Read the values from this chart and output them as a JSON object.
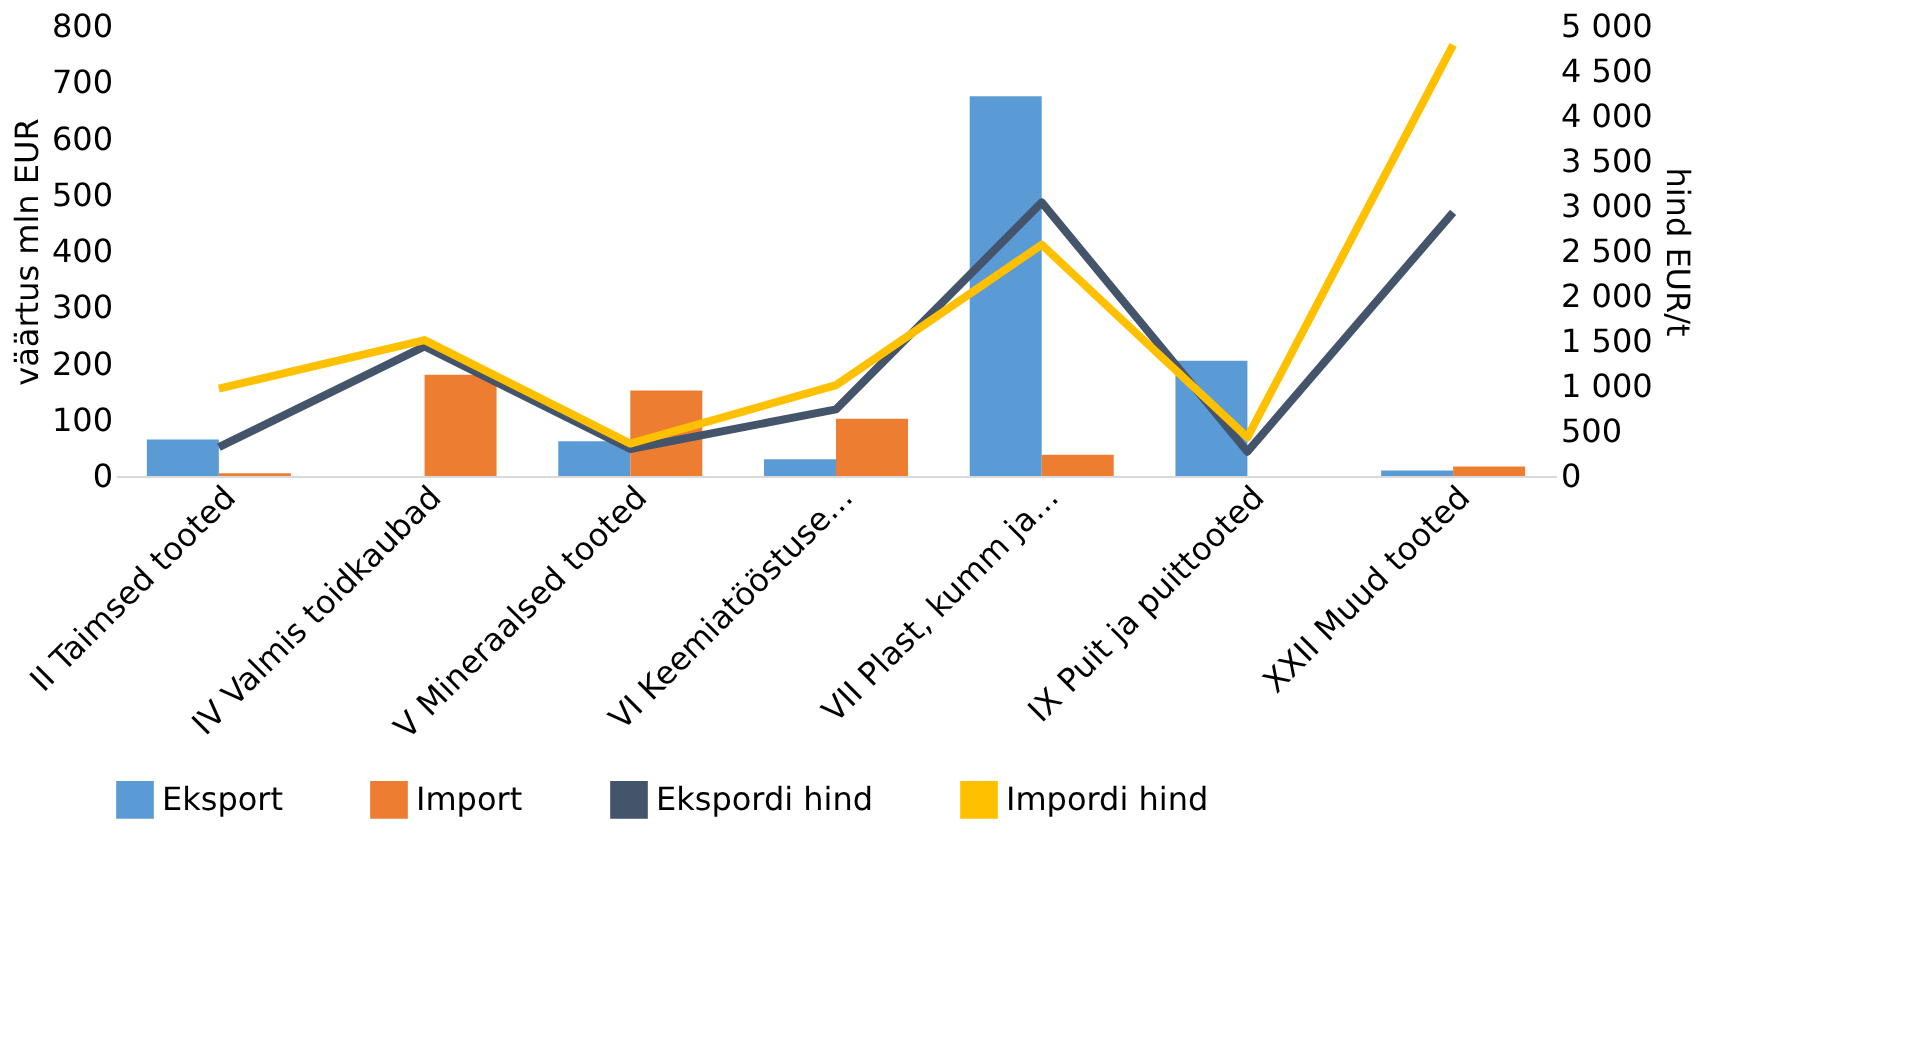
{
  "chart_data": {
    "type": "bar",
    "ylabel": "väärtus mln EUR",
    "y2label": "hind EUR/t",
    "categories": [
      "II Taimsed tooted",
      "IV Valmis toidkaubad",
      "V Mineraalsed tooted",
      "VI Keemiatööstuse...",
      "VII Plast, kumm ja...",
      "IX Puit ja puittooted",
      "XXII Muud tooted"
    ],
    "series": [
      {
        "name": "Eksport",
        "color": "#5b9bd5",
        "values": [
          65,
          null,
          62,
          30,
          675,
          205,
          10
        ]
      },
      {
        "name": "Import",
        "color": "#ed7d31",
        "values": [
          5,
          180,
          152,
          102,
          38,
          null,
          17
        ]
      },
      {
        "name": "Ekspordi hind",
        "type": "line",
        "axis": "y2",
        "color": "#44546a",
        "values": [
          320,
          1440,
          300,
          740,
          3040,
          270,
          2930
        ]
      },
      {
        "name": "Impordi hind",
        "type": "line",
        "axis": "y2",
        "color": "#ffc000",
        "values": [
          970,
          1510,
          360,
          1010,
          2570,
          430,
          4790
        ]
      }
    ],
    "ylim": [
      0,
      800
    ],
    "yticks": [
      0,
      100,
      200,
      300,
      400,
      500,
      600,
      700,
      800
    ],
    "y2lim": [
      0,
      5000
    ],
    "y2ticks": [
      {
        "value": 0,
        "label": "0"
      },
      {
        "value": 500,
        "label": "500"
      },
      {
        "value": 1000,
        "label": "1 000"
      },
      {
        "value": 1500,
        "label": "1 500"
      },
      {
        "value": 2000,
        "label": "2 000"
      },
      {
        "value": 2500,
        "label": "2 500"
      },
      {
        "value": 3000,
        "label": "3 000"
      },
      {
        "value": 3500,
        "label": "3 500"
      },
      {
        "value": 4000,
        "label": "4 000"
      },
      {
        "value": 4500,
        "label": "4 500"
      },
      {
        "value": 5000,
        "label": "5 000"
      }
    ],
    "grid": false,
    "legend": "bottom"
  }
}
